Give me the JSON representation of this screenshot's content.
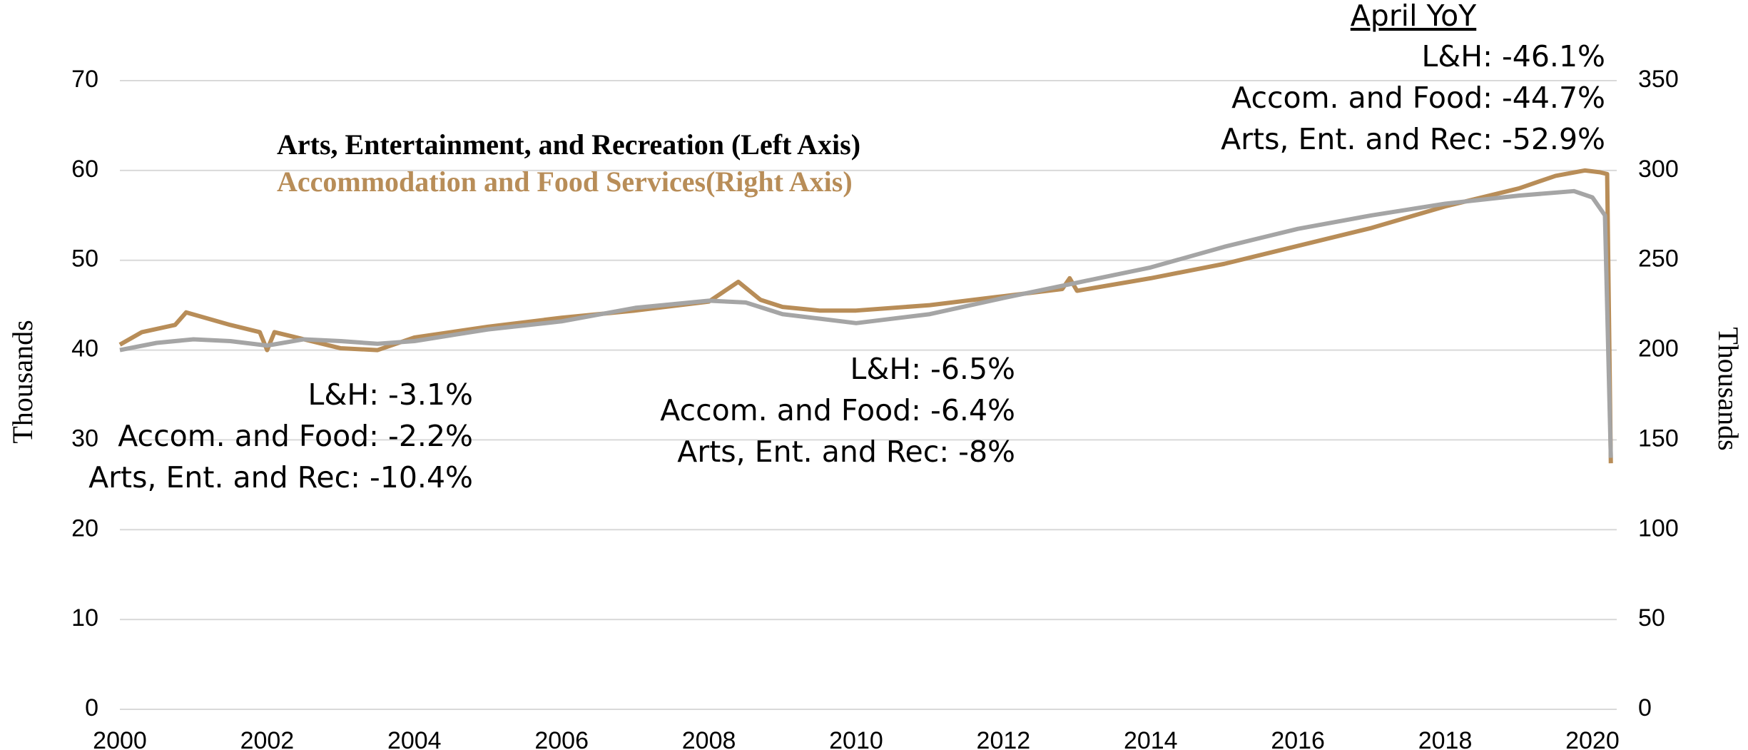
{
  "chart_data": {
    "type": "line",
    "legend": [
      "Arts, Entertainment, and Recreation (Left Axis)",
      "Accommodation and Food Services(Right Axis)"
    ],
    "ylabel": "Thousands",
    "y2label": "Thousands",
    "xlim": [
      2000,
      2020.33
    ],
    "xticks": [
      2000,
      2002,
      2004,
      2006,
      2008,
      2010,
      2012,
      2014,
      2016,
      2018,
      2020
    ],
    "ylim": [
      0,
      70
    ],
    "yticks": [
      0,
      10,
      20,
      30,
      40,
      50,
      60,
      70
    ],
    "y2lim": [
      0,
      350
    ],
    "y2ticks": [
      0,
      50,
      100,
      150,
      200,
      250,
      300,
      350
    ],
    "grid": true,
    "series": [
      {
        "name": "Arts, Entertainment, and Recreation",
        "color": "#a5a5a5",
        "axis": "y",
        "x": [
          2000,
          2000.5,
          2001,
          2001.5,
          2002,
          2002.5,
          2003,
          2003.5,
          2004,
          2005,
          2006,
          2007,
          2008,
          2008.5,
          2009,
          2009.5,
          2010,
          2011,
          2012,
          2013,
          2014,
          2015,
          2016,
          2017,
          2018,
          2019,
          2019.75,
          2020,
          2020.17,
          2020.25
        ],
        "values": [
          40,
          40.8,
          41.2,
          41,
          40.5,
          41.2,
          41,
          40.7,
          41,
          42.3,
          43.2,
          44.7,
          45.5,
          45.3,
          44,
          43.5,
          43,
          44,
          45.8,
          47.5,
          49.2,
          51.5,
          53.5,
          55,
          56.3,
          57.2,
          57.7,
          57,
          55,
          28
        ]
      },
      {
        "name": "Accommodation and Food Services",
        "color": "#b88d58",
        "axis": "y2",
        "x": [
          2000,
          2000.3,
          2000.75,
          2000.9,
          2001.5,
          2001.9,
          2002,
          2002.1,
          2003,
          2003.5,
          2004,
          2005,
          2006,
          2007,
          2008,
          2008.4,
          2008.7,
          2009,
          2009.5,
          2010,
          2011,
          2012,
          2012.8,
          2012.9,
          2013,
          2014,
          2015,
          2016,
          2017,
          2018,
          2019,
          2019.5,
          2019.9,
          2020.1,
          2020.2,
          2020.25
        ],
        "values": [
          203,
          210,
          214,
          221,
          214,
          210,
          200,
          210,
          201,
          200,
          207,
          213,
          218,
          222,
          227,
          238,
          228,
          224,
          222,
          222,
          225,
          230,
          234,
          240,
          233,
          240,
          248,
          258,
          268,
          280,
          290,
          297,
          300,
          299,
          298,
          137
        ]
      }
    ],
    "annotations": [
      {
        "lines": [
          "L&H: -3.1%",
          "Accom. and Food: -2.2%",
          "Arts, Ent. and Rec: -10.4%"
        ]
      },
      {
        "lines": [
          "L&H: -6.5%",
          "Accom. and Food: -6.4%",
          "Arts, Ent. and Rec: -8%"
        ]
      },
      {
        "title": "April YoY",
        "lines": [
          "L&H: -46.1%",
          "Accom. and Food: -44.7%",
          "Arts, Ent. and Rec: -52.9%"
        ]
      }
    ]
  }
}
